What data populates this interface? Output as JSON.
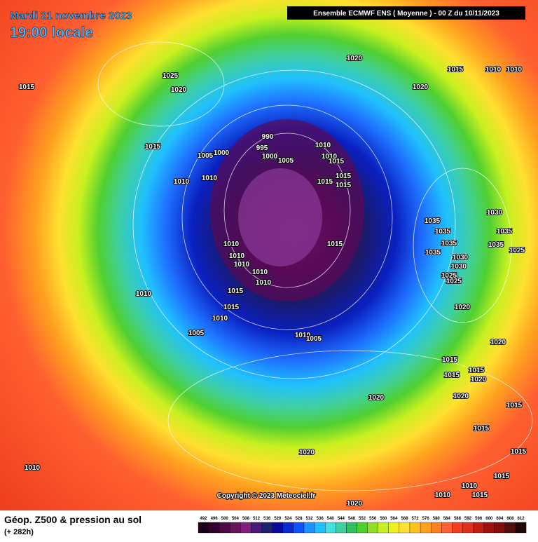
{
  "header": {
    "date": "Mardi 21 novembre 2023",
    "time": "19:00 locale",
    "model": "Ensemble ECMWF ENS  ( Moyenne )  -  00 Z du 10/11/2023"
  },
  "copyright": "Copyright © 2023 Meteociel.fr",
  "footer": {
    "title": "Géop. Z500 & pression au sol",
    "lead": "(+ 282h)"
  },
  "legend": {
    "values": [
      492,
      496,
      500,
      504,
      508,
      512,
      516,
      520,
      524,
      528,
      532,
      536,
      540,
      544,
      548,
      552,
      556,
      560,
      564,
      568,
      572,
      576,
      580,
      584,
      588,
      592,
      596,
      600,
      604,
      608,
      612
    ]
  },
  "isobar_labels": [
    1015,
    1025,
    1020,
    1020,
    1015,
    1010,
    1015,
    1005,
    1000,
    990,
    995,
    1000,
    1005,
    1010,
    1010,
    1015,
    1015,
    1015,
    1015,
    1010,
    1010,
    1020,
    1035,
    1035,
    1030,
    1035,
    1035,
    1035,
    1035,
    1030,
    1030,
    1025,
    1025,
    1025,
    1015,
    1010,
    1010,
    1010,
    1010,
    1010,
    1010,
    1015,
    1015,
    1010,
    1005,
    1010,
    1005,
    1020,
    1020,
    1015,
    1015,
    1015,
    1020,
    1020,
    1020,
    1015,
    1015,
    1020,
    1015,
    1010,
    1015,
    1010,
    1010,
    1015,
    1020,
    1010
  ]
}
